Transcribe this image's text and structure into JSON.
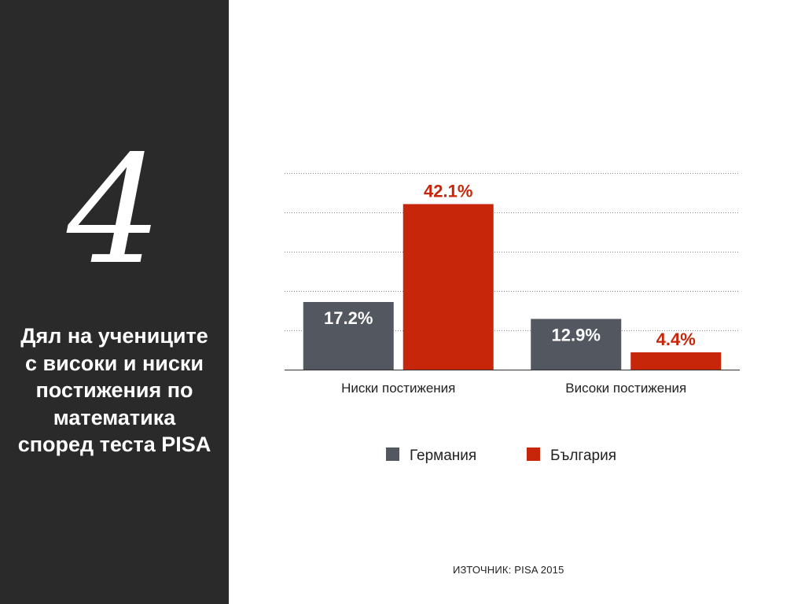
{
  "slide": {
    "number": "4",
    "title": "Дял на учениците с високи и ниски постижения по математика според теста PISA",
    "source": "ИЗТОЧНИК: PISA 2015"
  },
  "colors": {
    "sidebar_bg": "#2a2a2a",
    "germany": "#535760",
    "bulgaria": "#c8260b"
  },
  "chart_data": {
    "type": "bar",
    "categories": [
      "Ниски постижения",
      "Високи постижения"
    ],
    "series": [
      {
        "name": "Германия",
        "values": [
          17.2,
          12.9
        ],
        "labels": [
          "17.2%",
          "12.9%"
        ],
        "color": "#535760",
        "label_position": "inside"
      },
      {
        "name": "България",
        "values": [
          42.1,
          4.4
        ],
        "labels": [
          "42.1%",
          "4.4%"
        ],
        "color": "#c8260b",
        "label_position": "above"
      }
    ],
    "ylim": [
      0,
      50
    ],
    "y_gridlines": [
      10,
      20,
      30,
      40,
      50
    ],
    "grid": "dotted horizontal",
    "legend_position": "bottom-center",
    "y_axis_labels_shown": false
  }
}
